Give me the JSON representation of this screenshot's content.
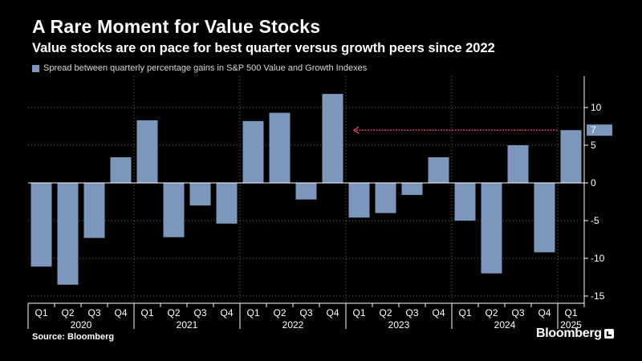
{
  "title": "A Rare Moment for Value Stocks",
  "subtitle": "Value stocks are on pace for best quarter versus growth peers since 2022",
  "legend": {
    "label": "Spread between quarterly percentage gains in S&P 500 Value and Growth Indexes",
    "color": "#7d97bc"
  },
  "source": "Source: Bloomberg",
  "brand": "Bloomberg",
  "colors": {
    "bar": "#7d97bc",
    "arrow": "#e0457b",
    "grid": "#6a6a6a",
    "background": "#000000"
  },
  "chart_data": {
    "type": "bar",
    "categories": [
      "Q1",
      "Q2",
      "Q3",
      "Q4",
      "Q1",
      "Q2",
      "Q3",
      "Q4",
      "Q1",
      "Q2",
      "Q3",
      "Q4",
      "Q1",
      "Q2",
      "Q3",
      "Q4",
      "Q1",
      "Q2",
      "Q3",
      "Q4",
      "Q1"
    ],
    "years": [
      {
        "label": "2020",
        "start": 0,
        "end": 3
      },
      {
        "label": "2021",
        "start": 4,
        "end": 7
      },
      {
        "label": "2022",
        "start": 8,
        "end": 11
      },
      {
        "label": "2023",
        "start": 12,
        "end": 15
      },
      {
        "label": "2024",
        "start": 16,
        "end": 19
      },
      {
        "label": "2025",
        "start": 20,
        "end": 20
      }
    ],
    "values": [
      -11.1,
      -13.5,
      -7.3,
      3.4,
      8.3,
      -7.2,
      -3.0,
      -5.4,
      8.2,
      9.3,
      -2.2,
      11.8,
      -4.6,
      -4.0,
      -1.6,
      3.4,
      -5.0,
      -12.0,
      5.0,
      -9.2,
      7.0
    ],
    "ylim": [
      -16,
      14
    ],
    "yticks": [
      10,
      5,
      0,
      -5,
      -10,
      -15
    ],
    "ytick_labels": [
      "10",
      "5",
      "0",
      "-5",
      "-10",
      "-15"
    ],
    "last_value_label": "7",
    "grid": true,
    "legend_position": "top-left"
  }
}
